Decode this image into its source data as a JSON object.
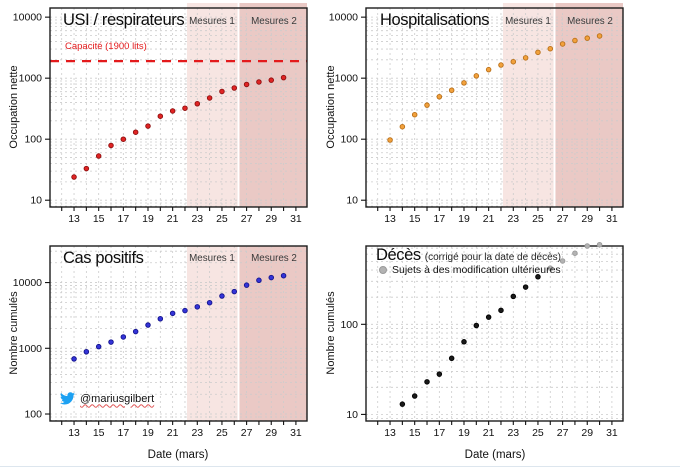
{
  "shared": {
    "x_label": "Date (mars)",
    "x_ticks": [
      12,
      13,
      14,
      15,
      16,
      17,
      18,
      19,
      20,
      21,
      22,
      23,
      24,
      25,
      26,
      27,
      28,
      29,
      30,
      31
    ],
    "x_tick_labels": [
      "13",
      "15",
      "17",
      "19",
      "21",
      "23",
      "25",
      "27",
      "29",
      "31"
    ],
    "regions": [
      {
        "label": "Mesures 1",
        "from": 22.16,
        "to": 26.27,
        "fill": "#f7e5e2"
      },
      {
        "label": "Mesures 2",
        "from": 26.42,
        "to": 31.9,
        "fill": "#eac9c5"
      }
    ],
    "grid_color": "#cccccc",
    "box_color": "#1c1c1c",
    "twitter_blue": "#1da1f2"
  },
  "chart_data": [
    {
      "key": "usi",
      "type": "scatter",
      "title": "USI / respirateurs",
      "ylabel": "Occupation nette",
      "x": [
        13,
        14,
        15,
        16,
        17,
        18,
        19,
        20,
        21,
        22,
        23,
        24,
        25,
        26,
        27,
        28,
        29,
        30
      ],
      "values": [
        24,
        33,
        53,
        79,
        100,
        130,
        164,
        238,
        290,
        322,
        381,
        474,
        605,
        690,
        789,
        867,
        927,
        1021
      ],
      "point_color": "#e02424",
      "point_edge": "#8f1010",
      "y_ticks": [
        "10",
        "100",
        "1000",
        "10000"
      ],
      "ylim": [
        7.74,
        14125
      ],
      "has_regions": true,
      "capacity": {
        "label": "Capacité (1900 lits)",
        "value": 1900,
        "color": "#e31a1c"
      }
    },
    {
      "key": "hospitalisations",
      "type": "scatter",
      "title": "Hospitalisations",
      "ylabel": "Occupation nette",
      "x": [
        13,
        14,
        15,
        16,
        17,
        18,
        19,
        20,
        21,
        22,
        23,
        24,
        25,
        26,
        27,
        28,
        29,
        30
      ],
      "values": [
        97,
        160,
        252,
        361,
        496,
        634,
        837,
        1089,
        1380,
        1643,
        1859,
        2152,
        2652,
        3042,
        3635,
        4138,
        4524,
        4920
      ],
      "point_color": "#f2a13c",
      "point_edge": "#b9701a",
      "y_ticks": [
        "10",
        "100",
        "1000",
        "10000"
      ],
      "ylim": [
        7.74,
        14125
      ],
      "has_regions": true
    },
    {
      "key": "cas_positifs",
      "type": "scatter",
      "title": "Cas positifs",
      "ylabel": "Nombre cumulés",
      "xlabel": "Date (mars)",
      "x": [
        13,
        14,
        15,
        16,
        17,
        18,
        19,
        20,
        21,
        22,
        23,
        24,
        25,
        26,
        27,
        28,
        29,
        30
      ],
      "values": [
        689,
        886,
        1058,
        1243,
        1486,
        1795,
        2257,
        2815,
        3401,
        3743,
        4269,
        4937,
        6235,
        7284,
        9134,
        10836,
        11899,
        12705
      ],
      "point_color": "#3434d8",
      "point_edge": "#14148c",
      "y_ticks": [
        "100",
        "1000",
        "10000"
      ],
      "ylim": [
        78.3,
        36000
      ],
      "has_regions": true,
      "annotation": {
        "handle": "@mariusgilbert"
      }
    },
    {
      "key": "deces",
      "type": "scatter",
      "title": "Décès",
      "title_note": "(corrigé pour la date de décès)",
      "legend": "Sujets à des modification ultérieures",
      "ylabel": "Nombre cumulés",
      "xlabel": "Date (mars)",
      "y_ticks": [
        "10",
        "100"
      ],
      "ylim": [
        8.45,
        740
      ],
      "has_regions": false,
      "series": [
        {
          "name": "deces-confirmes",
          "color": "#1a1a1a",
          "edge": "#000000",
          "x": [
            14,
            15,
            16,
            17,
            18,
            19,
            20,
            21,
            22,
            23,
            24,
            25
          ],
          "values": [
            13,
            16,
            23,
            28,
            42,
            64,
            97,
            120,
            143,
            204,
            259,
            337
          ]
        },
        {
          "name": "deces-provisoires",
          "color": "#b3b3b3",
          "edge": "#9a9a9a",
          "x": [
            26,
            27,
            28,
            29,
            30
          ],
          "values": [
            420,
            505,
            615,
            740,
            765
          ]
        }
      ]
    }
  ]
}
